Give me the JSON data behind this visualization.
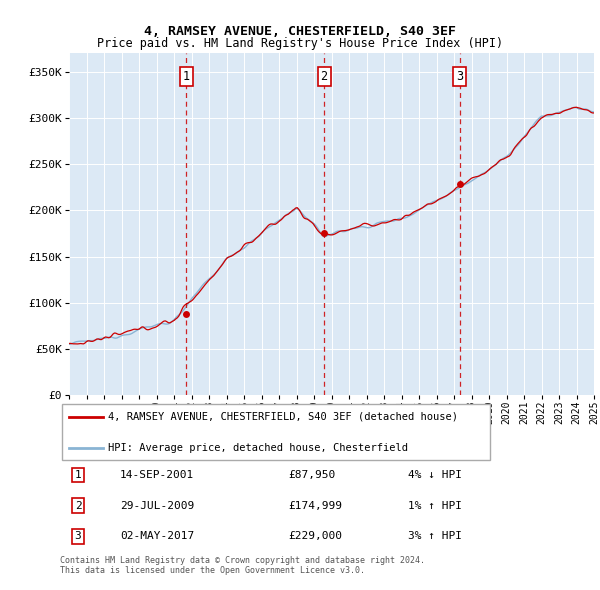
{
  "title": "4, RAMSEY AVENUE, CHESTERFIELD, S40 3EF",
  "subtitle": "Price paid vs. HM Land Registry's House Price Index (HPI)",
  "ylim": [
    0,
    370000
  ],
  "yticks": [
    0,
    50000,
    100000,
    150000,
    200000,
    250000,
    300000,
    350000
  ],
  "ytick_labels": [
    "£0",
    "£50K",
    "£100K",
    "£150K",
    "£200K",
    "£250K",
    "£300K",
    "£350K"
  ],
  "xstart": 1995,
  "xend": 2025,
  "background_color": "#dce9f5",
  "grid_color": "#ffffff",
  "red_color": "#cc0000",
  "blue_color": "#8ab4d4",
  "sale_points": [
    {
      "year": 2001.71,
      "price": 87950,
      "label": "1"
    },
    {
      "year": 2009.58,
      "price": 174999,
      "label": "2"
    },
    {
      "year": 2017.33,
      "price": 229000,
      "label": "3"
    }
  ],
  "legend_entries": [
    "4, RAMSEY AVENUE, CHESTERFIELD, S40 3EF (detached house)",
    "HPI: Average price, detached house, Chesterfield"
  ],
  "table_rows": [
    {
      "num": "1",
      "date": "14-SEP-2001",
      "price": "£87,950",
      "hpi": "4% ↓ HPI"
    },
    {
      "num": "2",
      "date": "29-JUL-2009",
      "price": "£174,999",
      "hpi": "1% ↑ HPI"
    },
    {
      "num": "3",
      "date": "02-MAY-2017",
      "price": "£229,000",
      "hpi": "3% ↑ HPI"
    }
  ],
  "footer": "Contains HM Land Registry data © Crown copyright and database right 2024.\nThis data is licensed under the Open Government Licence v3.0."
}
